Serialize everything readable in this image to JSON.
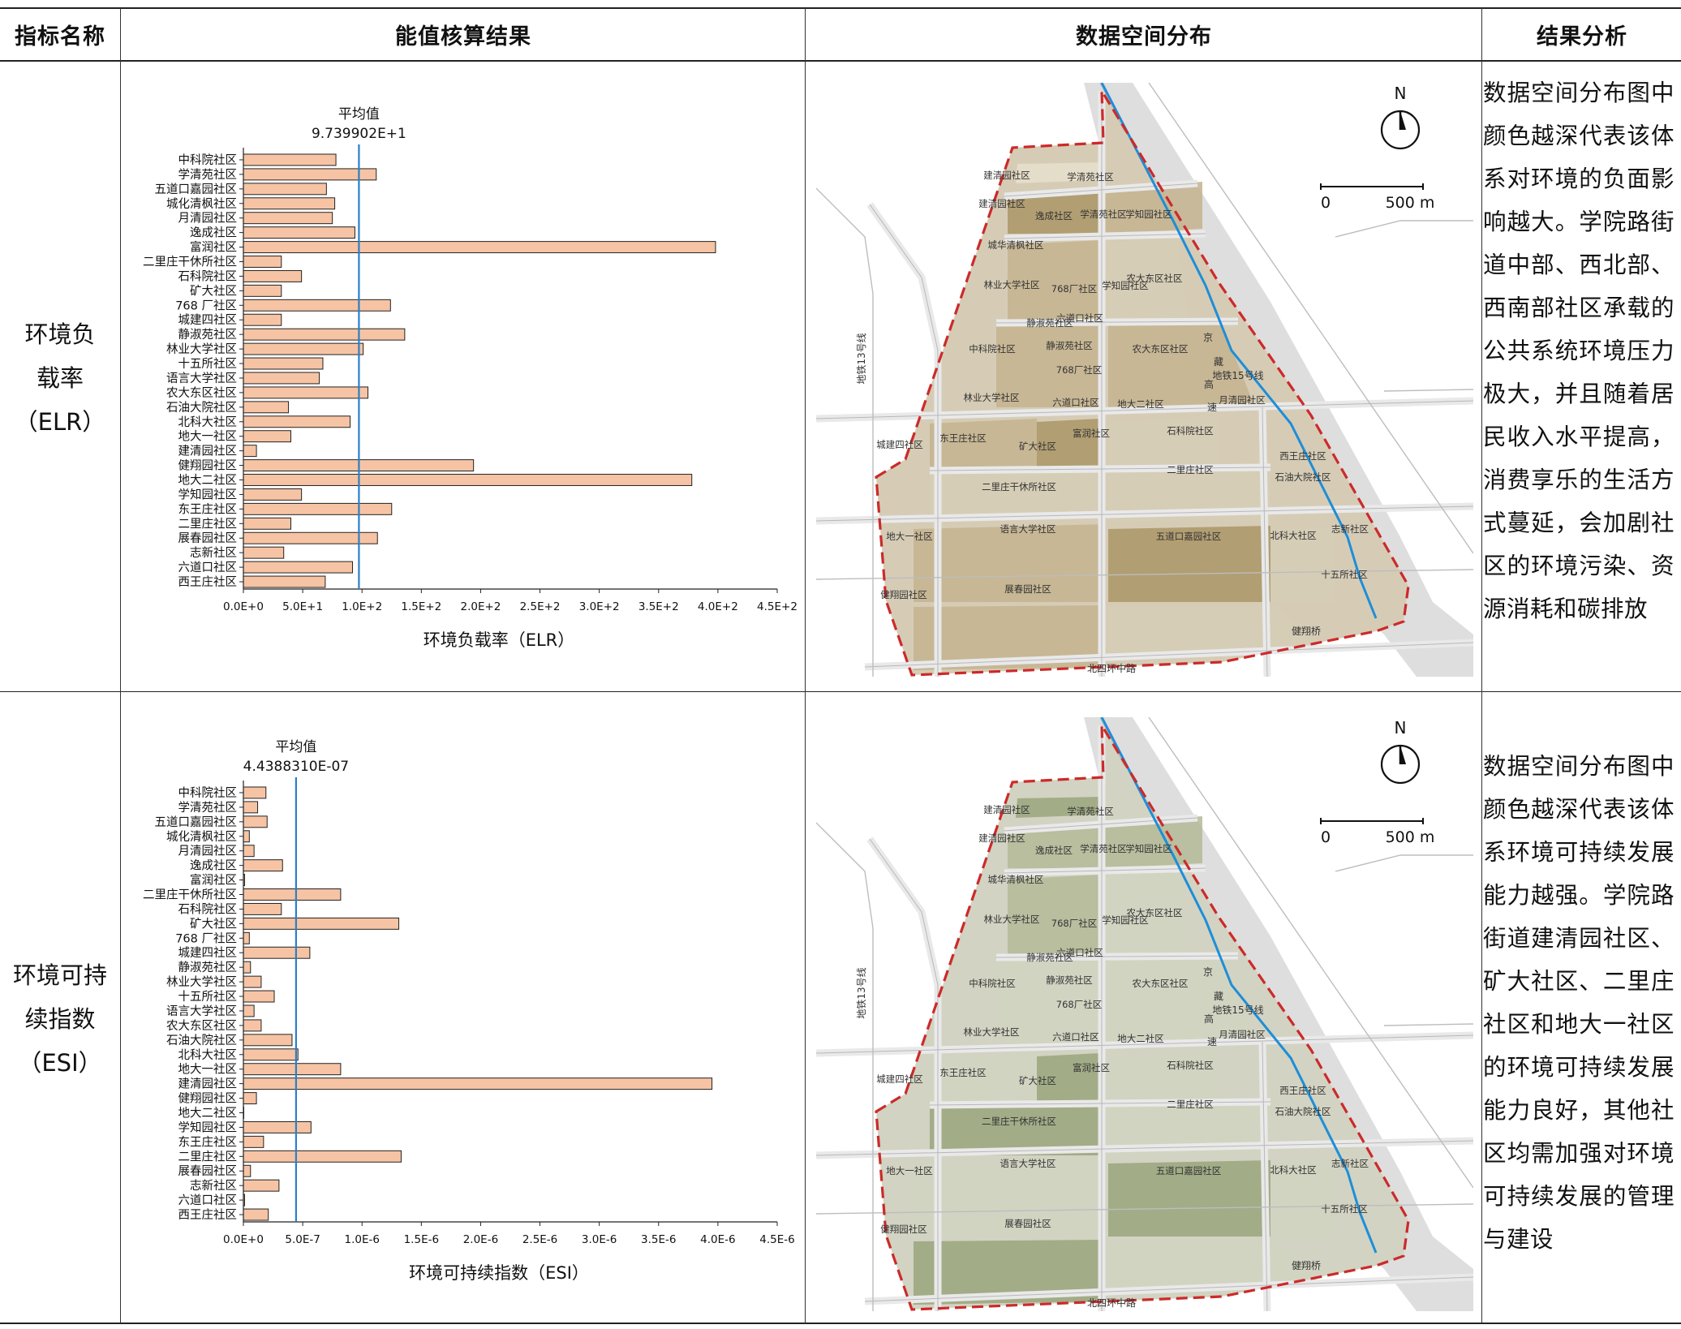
{
  "header": {
    "col1": "指标名称",
    "col2": "能值核算结果",
    "col3": "数据空间分布",
    "col4": "结果分析"
  },
  "rows": [
    {
      "indicator_line1": "环境负",
      "indicator_line2": "载率",
      "indicator_abbr": "（ELR）",
      "analysis_text": "数据空间分布图中颜色越深代表该体系对环境的负面影响越大。学院路街道中部、西北部、西南部社区承载的公共系统环境压力极大，并且随着居民收入水平提高，消费享乐的生活方式蔓延，会加剧社区的环境污染、资源消耗和碳排放"
    },
    {
      "indicator_line1": "环境可持",
      "indicator_line2": "续指数",
      "indicator_abbr": "（ESI）",
      "analysis_text": "数据空间分布图中颜色越深代表该体系环境可持续发展能力越强。学院路街道建清园社区、矿大社区、二里庄社区和地大一社区的环境可持续发展能力良好，其他社区均需加强对环境可持续发展的管理与建设"
    }
  ],
  "chart_data": [
    {
      "type": "bar",
      "orientation": "horizontal",
      "xlabel": "环境负载率（ELR）",
      "xlim": [
        0,
        450
      ],
      "xticks": [
        "0.0E+0",
        "5.0E+1",
        "1.0E+2",
        "1.5E+2",
        "2.0E+2",
        "2.5E+2",
        "3.0E+2",
        "3.5E+2",
        "4.0E+2",
        "4.5E+2"
      ],
      "mean_label": "平均值",
      "mean_value_label": "9.739902E+1",
      "mean_value": 97.39902,
      "bar_color": "#f6c4a4",
      "mean_line_color": "#2b7fc7",
      "categories": [
        "中科院社区",
        "学清苑社区",
        "五道口嘉园社区",
        "城化清枫社区",
        "月清园社区",
        "逸成社区",
        "富润社区",
        "二里庄干休所社区",
        "石科院社区",
        "矿大社区",
        "768 厂社区",
        "城建四社区",
        "静淑苑社区",
        "林业大学社区",
        "十五所社区",
        "语言大学社区",
        "农大东区社区",
        "石油大院社区",
        "北科大社区",
        "地大一社区",
        "建清园社区",
        "健翔园社区",
        "地大二社区",
        "学知园社区",
        "东王庄社区",
        "二里庄社区",
        "展春园社区",
        "志新社区",
        "六道口社区",
        "西王庄社区"
      ],
      "values": [
        78,
        112,
        70,
        77,
        75,
        94,
        398,
        32,
        49,
        32,
        124,
        32,
        136,
        101,
        67,
        64,
        105,
        38,
        90,
        40,
        11,
        194,
        378,
        49,
        125,
        40,
        113,
        34,
        92,
        69
      ]
    },
    {
      "type": "bar",
      "orientation": "horizontal",
      "xlabel": "环境可持续指数（ESI）",
      "xlim": [
        0,
        4.5e-06
      ],
      "xticks": [
        "0.0E+0",
        "5.0E-7",
        "1.0E-6",
        "1.5E-6",
        "2.0E-6",
        "2.5E-6",
        "3.0E-6",
        "3.5E-6",
        "4.0E-6",
        "4.5E-6"
      ],
      "mean_label": "平均值",
      "mean_value_label": "4.4388310E-07",
      "mean_value": 4.438831e-07,
      "bar_color": "#f6c4a4",
      "mean_line_color": "#2b7fc7",
      "categories": [
        "中科院社区",
        "学清苑社区",
        "五道口嘉园社区",
        "城化清枫社区",
        "月清园社区",
        "逸成社区",
        "富润社区",
        "二里庄干休所社区",
        "石科院社区",
        "矿大社区",
        "768 厂社区",
        "城建四社区",
        "静淑苑社区",
        "林业大学社区",
        "十五所社区",
        "语言大学社区",
        "农大东区社区",
        "石油大院社区",
        "北科大社区",
        "地大一社区",
        "建清园社区",
        "健翔园社区",
        "地大二社区",
        "学知园社区",
        "东王庄社区",
        "二里庄社区",
        "展春园社区",
        "志新社区",
        "六道口社区",
        "西王庄社区"
      ],
      "values": [
        1.9e-07,
        1.2e-07,
        2e-07,
        5e-08,
        9e-08,
        3.3e-07,
        1e-08,
        8.2e-07,
        3.2e-07,
        1.31e-06,
        5e-08,
        5.6e-07,
        6e-08,
        1.5e-07,
        2.6e-07,
        9e-08,
        1.5e-07,
        4.1e-07,
        4.6e-07,
        8.2e-07,
        3.95e-06,
        1.1e-07,
        0.0,
        5.7e-07,
        1.7e-07,
        1.33e-06,
        6e-08,
        3e-07,
        1e-08,
        2.1e-07
      ]
    }
  ],
  "maps": [
    {
      "theme": "elr",
      "north": "N",
      "scale_start": "0",
      "scale_end": "500 m",
      "community_labels": [
        "建清园社区",
        "学清苑社区",
        "建清园社区",
        "逸成社区",
        "学清苑社区",
        "学知园社区",
        "城华清枫社区",
        "林业大学社区",
        "768厂社区",
        "学知园社区",
        "农大东区社区",
        "静淑苑社区",
        "六道口社区",
        "中科院社区",
        "静淑苑社区",
        "农大东区社区",
        "768厂社区",
        "林业大学社区",
        "六道口社区",
        "月清园社区",
        "东王庄社区",
        "矿大社区",
        "富润社区",
        "石科院社区",
        "城建四社区",
        "西王庄社区",
        "二里庄社区",
        "石油大院社区",
        "二里庄干休所社区",
        "语言大学社区",
        "地大一社区",
        "五道口嘉园社区",
        "北科大社区",
        "志新社区",
        "十五所社区",
        "健翔园社区",
        "展春园社区",
        "地大二社区"
      ],
      "road_labels": [
        "地铁13号线",
        "地铁15号线",
        "北四环中路",
        "健翔桥",
        "京",
        "藏",
        "高",
        "速"
      ],
      "palette": {
        "base": "#d6ccb6",
        "mid": "#c4b38f",
        "dark": "#aa9566",
        "light": "#e6dfcd"
      }
    },
    {
      "theme": "esi",
      "north": "N",
      "scale_start": "0",
      "scale_end": "500 m",
      "community_labels": [
        "建清园社区",
        "学清苑社区",
        "建清园社区",
        "逸成社区",
        "学清苑社区",
        "学知园社区",
        "城华清枫社区",
        "林业大学社区",
        "768厂社区",
        "学知园社区",
        "农大东区社区",
        "静淑苑社区",
        "六道口社区",
        "中科院社区",
        "静淑苑社区",
        "农大东区社区",
        "768厂社区",
        "林业大学社区",
        "六道口社区",
        "月清园社区",
        "东王庄社区",
        "矿大社区",
        "富润社区",
        "石科院社区",
        "城建四社区",
        "西王庄社区",
        "二里庄社区",
        "石油大院社区",
        "二里庄干休所社区",
        "语言大学社区",
        "地大一社区",
        "五道口嘉园社区",
        "北科大社区",
        "志新社区",
        "十五所社区",
        "健翔园社区",
        "展春园社区",
        "地大二社区"
      ],
      "road_labels": [
        "地铁13号线",
        "地铁15号线",
        "北四环中路",
        "健翔桥",
        "京",
        "藏",
        "高",
        "速"
      ],
      "palette": {
        "base": "#d2d3c2",
        "mid": "#b4ba98",
        "dark": "#9aa57c",
        "light": "#e3e4d7"
      }
    }
  ]
}
